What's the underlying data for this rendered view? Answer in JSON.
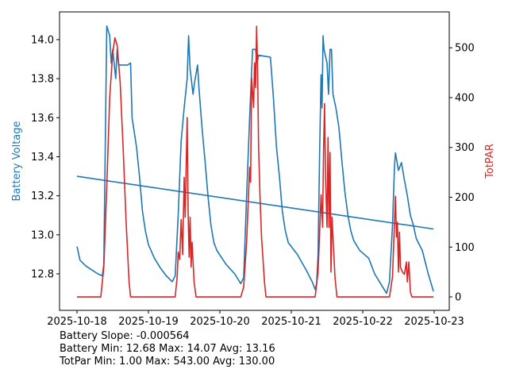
{
  "chart_data": {
    "type": "line",
    "colors": {
      "battery": "#1f77b4",
      "par": "#d62728"
    },
    "xlim": [
      "2025-10-17 18:08",
      "2025-10-23 05:04"
    ],
    "x_ticks": [
      "2025-10-18",
      "2025-10-19",
      "2025-10-20",
      "2025-10-21",
      "2025-10-22",
      "2025-10-23"
    ],
    "y_left": {
      "label": "Battery Voltage",
      "ylim": [
        12.613,
        14.142
      ],
      "ticks": [
        "12.8",
        "13.0",
        "13.2",
        "13.4",
        "13.6",
        "13.8",
        "14.0"
      ]
    },
    "y_right": {
      "label": "TotPAR",
      "ylim": [
        -27,
        572
      ],
      "ticks": [
        "0",
        "100",
        "200",
        "300",
        "400",
        "500"
      ]
    },
    "grid": false,
    "series": [
      {
        "key": "battery",
        "axis": "left",
        "points": [
          [
            "2025-10-18 00:00",
            12.94
          ],
          [
            "2025-10-18 01:00",
            12.87
          ],
          [
            "2025-10-18 03:00",
            12.84
          ],
          [
            "2025-10-18 05:00",
            12.82
          ],
          [
            "2025-10-18 07:00",
            12.8
          ],
          [
            "2025-10-18 08:30",
            12.79
          ],
          [
            "2025-10-18 09:00",
            12.85
          ],
          [
            "2025-10-18 10:00",
            14.07
          ],
          [
            "2025-10-18 11:00",
            14.02
          ],
          [
            "2025-10-18 11:30",
            13.88
          ],
          [
            "2025-10-18 12:00",
            13.95
          ],
          [
            "2025-10-18 13:00",
            13.8
          ],
          [
            "2025-10-18 13:30",
            13.95
          ],
          [
            "2025-10-18 14:00",
            13.87
          ],
          [
            "2025-10-18 17:00",
            13.87
          ],
          [
            "2025-10-18 18:00",
            13.88
          ],
          [
            "2025-10-18 18:30",
            13.6
          ],
          [
            "2025-10-18 20:00",
            13.45
          ],
          [
            "2025-10-18 21:00",
            13.3
          ],
          [
            "2025-10-18 22:00",
            13.12
          ],
          [
            "2025-10-18 23:00",
            13.02
          ],
          [
            "2025-10-19 00:00",
            12.95
          ],
          [
            "2025-10-19 02:00",
            12.88
          ],
          [
            "2025-10-19 04:00",
            12.83
          ],
          [
            "2025-10-19 06:00",
            12.79
          ],
          [
            "2025-10-19 08:00",
            12.76
          ],
          [
            "2025-10-19 09:00",
            12.79
          ],
          [
            "2025-10-19 10:00",
            13.1
          ],
          [
            "2025-10-19 11:00",
            13.48
          ],
          [
            "2025-10-19 12:00",
            13.65
          ],
          [
            "2025-10-19 13:00",
            13.8
          ],
          [
            "2025-10-19 13:30",
            14.02
          ],
          [
            "2025-10-19 14:00",
            13.85
          ],
          [
            "2025-10-19 15:00",
            13.72
          ],
          [
            "2025-10-19 15:30",
            13.78
          ],
          [
            "2025-10-19 16:30",
            13.87
          ],
          [
            "2025-10-19 17:00",
            13.75
          ],
          [
            "2025-10-19 18:00",
            13.55
          ],
          [
            "2025-10-19 19:00",
            13.38
          ],
          [
            "2025-10-19 20:00",
            13.2
          ],
          [
            "2025-10-19 21:00",
            13.05
          ],
          [
            "2025-10-19 22:00",
            12.96
          ],
          [
            "2025-10-19 23:00",
            12.92
          ],
          [
            "2025-10-20 02:00",
            12.85
          ],
          [
            "2025-10-20 05:00",
            12.8
          ],
          [
            "2025-10-20 07:00",
            12.75
          ],
          [
            "2025-10-20 08:00",
            12.78
          ],
          [
            "2025-10-20 09:00",
            13.2
          ],
          [
            "2025-10-20 10:00",
            13.6
          ],
          [
            "2025-10-20 11:00",
            13.95
          ],
          [
            "2025-10-20 12:00",
            13.95
          ],
          [
            "2025-10-20 12:30",
            13.88
          ],
          [
            "2025-10-20 13:00",
            13.92
          ],
          [
            "2025-10-20 17:00",
            13.91
          ],
          [
            "2025-10-20 18:00",
            13.7
          ],
          [
            "2025-10-20 19:00",
            13.45
          ],
          [
            "2025-10-20 20:00",
            13.3
          ],
          [
            "2025-10-20 21:00",
            13.12
          ],
          [
            "2025-10-20 22:00",
            13.02
          ],
          [
            "2025-10-20 23:00",
            12.96
          ],
          [
            "2025-10-21 02:00",
            12.9
          ],
          [
            "2025-10-21 05:00",
            12.82
          ],
          [
            "2025-10-21 07:00",
            12.76
          ],
          [
            "2025-10-21 08:00",
            12.72
          ],
          [
            "2025-10-21 08:30",
            12.75
          ],
          [
            "2025-10-21 09:00",
            12.9
          ],
          [
            "2025-10-21 09:30",
            13.4
          ],
          [
            "2025-10-21 10:00",
            13.82
          ],
          [
            "2025-10-21 10:20",
            13.65
          ],
          [
            "2025-10-21 10:40",
            14.02
          ],
          [
            "2025-10-21 11:00",
            13.95
          ],
          [
            "2025-10-21 12:00",
            13.88
          ],
          [
            "2025-10-21 12:30",
            13.72
          ],
          [
            "2025-10-21 13:00",
            13.95
          ],
          [
            "2025-10-21 13:30",
            13.95
          ],
          [
            "2025-10-21 14:00",
            13.72
          ],
          [
            "2025-10-21 15:00",
            13.65
          ],
          [
            "2025-10-21 16:00",
            13.55
          ],
          [
            "2025-10-21 17:00",
            13.38
          ],
          [
            "2025-10-21 18:00",
            13.22
          ],
          [
            "2025-10-21 19:00",
            13.1
          ],
          [
            "2025-10-21 20:00",
            13.02
          ],
          [
            "2025-10-21 21:00",
            12.97
          ],
          [
            "2025-10-21 23:00",
            12.92
          ],
          [
            "2025-10-22 02:00",
            12.88
          ],
          [
            "2025-10-22 04:00",
            12.8
          ],
          [
            "2025-10-22 06:00",
            12.75
          ],
          [
            "2025-10-22 08:00",
            12.7
          ],
          [
            "2025-10-22 09:00",
            12.76
          ],
          [
            "2025-10-22 10:00",
            13.05
          ],
          [
            "2025-10-22 10:40",
            13.35
          ],
          [
            "2025-10-22 11:00",
            13.42
          ],
          [
            "2025-10-22 12:00",
            13.33
          ],
          [
            "2025-10-22 13:00",
            13.37
          ],
          [
            "2025-10-22 14:00",
            13.28
          ],
          [
            "2025-10-22 15:00",
            13.2
          ],
          [
            "2025-10-22 16:00",
            13.1
          ],
          [
            "2025-10-22 17:00",
            13.05
          ],
          [
            "2025-10-22 18:00",
            12.98
          ],
          [
            "2025-10-22 20:00",
            12.92
          ],
          [
            "2025-10-22 22:00",
            12.8
          ],
          [
            "2025-10-22 23:45",
            12.71
          ]
        ]
      },
      {
        "key": "battery_trend",
        "axis": "left",
        "points": [
          [
            "2025-10-18 00:00",
            13.3
          ],
          [
            "2025-10-22 23:45",
            13.03
          ]
        ]
      },
      {
        "key": "par",
        "axis": "right",
        "points": [
          [
            "2025-10-18 00:00",
            0
          ],
          [
            "2025-10-18 08:00",
            0
          ],
          [
            "2025-10-18 09:00",
            60
          ],
          [
            "2025-10-18 10:00",
            220
          ],
          [
            "2025-10-18 11:00",
            400
          ],
          [
            "2025-10-18 12:00",
            490
          ],
          [
            "2025-10-18 12:45",
            520
          ],
          [
            "2025-10-18 13:30",
            505
          ],
          [
            "2025-10-18 14:30",
            430
          ],
          [
            "2025-10-18 15:30",
            300
          ],
          [
            "2025-10-18 16:30",
            150
          ],
          [
            "2025-10-18 17:30",
            30
          ],
          [
            "2025-10-18 18:00",
            0
          ],
          [
            "2025-10-19 09:00",
            0
          ],
          [
            "2025-10-19 09:40",
            40
          ],
          [
            "2025-10-19 10:00",
            90
          ],
          [
            "2025-10-19 10:30",
            75
          ],
          [
            "2025-10-19 11:00",
            155
          ],
          [
            "2025-10-19 11:30",
            85
          ],
          [
            "2025-10-19 12:00",
            240
          ],
          [
            "2025-10-19 12:20",
            160
          ],
          [
            "2025-10-19 13:00",
            360
          ],
          [
            "2025-10-19 13:20",
            170
          ],
          [
            "2025-10-19 13:40",
            80
          ],
          [
            "2025-10-19 14:00",
            160
          ],
          [
            "2025-10-19 14:20",
            60
          ],
          [
            "2025-10-19 14:40",
            110
          ],
          [
            "2025-10-19 15:20",
            30
          ],
          [
            "2025-10-19 16:00",
            0
          ],
          [
            "2025-10-20 07:00",
            0
          ],
          [
            "2025-10-20 08:00",
            20
          ],
          [
            "2025-10-20 09:00",
            110
          ],
          [
            "2025-10-20 10:00",
            260
          ],
          [
            "2025-10-20 10:20",
            230
          ],
          [
            "2025-10-20 10:40",
            440
          ],
          [
            "2025-10-20 11:20",
            380
          ],
          [
            "2025-10-20 11:40",
            470
          ],
          [
            "2025-10-20 12:00",
            420
          ],
          [
            "2025-10-20 12:20",
            543
          ],
          [
            "2025-10-20 12:40",
            460
          ],
          [
            "2025-10-20 13:00",
            300
          ],
          [
            "2025-10-20 13:30",
            200
          ],
          [
            "2025-10-20 14:00",
            120
          ],
          [
            "2025-10-20 15:00",
            30
          ],
          [
            "2025-10-20 15:30",
            0
          ],
          [
            "2025-10-21 08:00",
            0
          ],
          [
            "2025-10-21 09:00",
            50
          ],
          [
            "2025-10-21 09:40",
            150
          ],
          [
            "2025-10-21 10:00",
            205
          ],
          [
            "2025-10-21 10:30",
            140
          ],
          [
            "2025-10-21 10:50",
            290
          ],
          [
            "2025-10-21 11:10",
            388
          ],
          [
            "2025-10-21 11:30",
            240
          ],
          [
            "2025-10-21 12:00",
            140
          ],
          [
            "2025-10-21 12:20",
            320
          ],
          [
            "2025-10-21 12:40",
            140
          ],
          [
            "2025-10-21 13:00",
            290
          ],
          [
            "2025-10-21 13:20",
            50
          ],
          [
            "2025-10-21 13:40",
            160
          ],
          [
            "2025-10-21 14:00",
            120
          ],
          [
            "2025-10-21 14:40",
            40
          ],
          [
            "2025-10-21 15:20",
            0
          ],
          [
            "2025-10-22 09:00",
            0
          ],
          [
            "2025-10-22 10:00",
            40
          ],
          [
            "2025-10-22 10:40",
            150
          ],
          [
            "2025-10-22 11:00",
            202
          ],
          [
            "2025-10-22 11:20",
            120
          ],
          [
            "2025-10-22 11:40",
            150
          ],
          [
            "2025-10-22 12:00",
            50
          ],
          [
            "2025-10-22 12:20",
            130
          ],
          [
            "2025-10-22 12:40",
            60
          ],
          [
            "2025-10-22 13:20",
            50
          ],
          [
            "2025-10-22 14:00",
            45
          ],
          [
            "2025-10-22 14:40",
            70
          ],
          [
            "2025-10-22 15:00",
            30
          ],
          [
            "2025-10-22 15:30",
            70
          ],
          [
            "2025-10-22 16:00",
            10
          ],
          [
            "2025-10-22 16:30",
            0
          ],
          [
            "2025-10-22 23:45",
            0
          ]
        ]
      }
    ],
    "annotations": [
      "Battery Slope: -0.000564",
      "Battery Min: 12.68 Max: 14.07 Avg: 13.16",
      "TotPar Min: 1.00 Max: 543.00 Avg: 130.00"
    ]
  }
}
